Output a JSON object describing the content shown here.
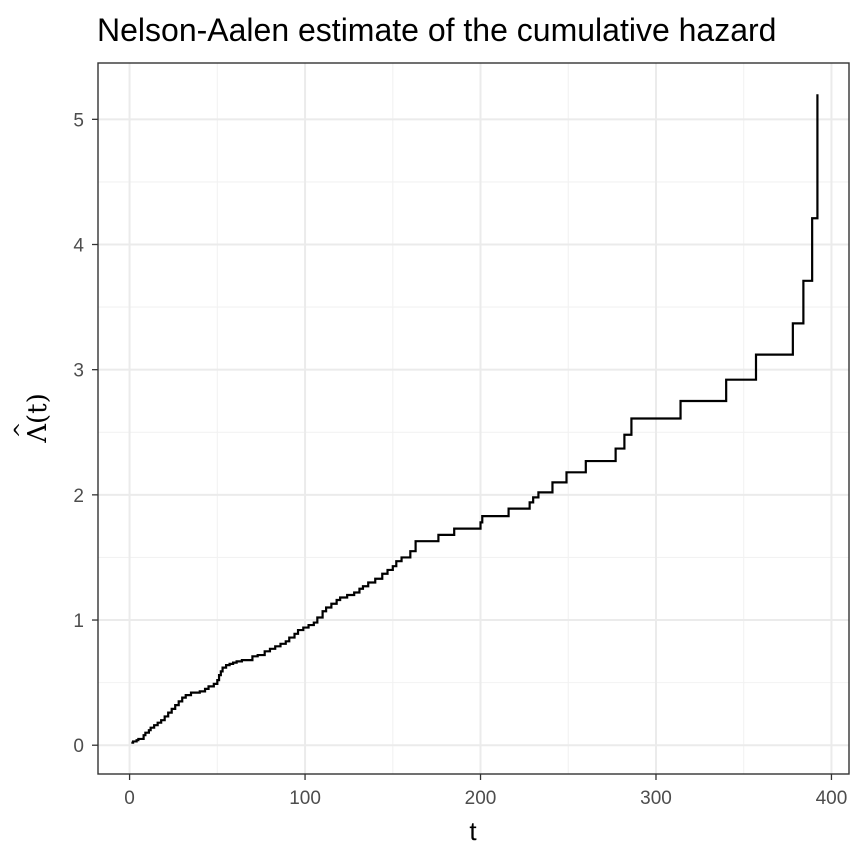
{
  "chart_data": {
    "type": "line",
    "title": "Nelson-Aalen estimate of the cumulative hazard",
    "xlabel": "t",
    "ylabel": "Λ(t)",
    "ylabel_accent": "^",
    "xlim": [
      -18,
      410
    ],
    "ylim": [
      -0.23,
      5.45
    ],
    "x_ticks": [
      0,
      100,
      200,
      300,
      400
    ],
    "y_ticks": [
      0,
      1,
      2,
      3,
      4,
      5
    ],
    "grid": true,
    "legend": "none",
    "line_color": "#000000",
    "series": [
      {
        "step": true,
        "x": [
          1,
          2,
          4,
          5,
          8,
          9,
          11,
          12,
          14,
          16,
          18,
          20,
          22,
          24,
          26,
          28,
          30,
          32,
          35,
          40,
          43,
          45,
          48,
          50,
          51,
          52,
          53,
          55,
          57,
          59,
          61,
          64,
          70,
          73,
          77,
          80,
          83,
          86,
          89,
          91,
          94,
          96,
          99,
          102,
          105,
          107,
          110,
          112,
          115,
          118,
          120,
          124,
          128,
          131,
          133,
          136,
          140,
          144,
          147,
          150,
          152,
          155,
          160,
          163,
          176,
          185,
          200,
          201,
          216,
          228,
          230,
          233,
          241,
          249,
          260,
          277,
          282,
          286,
          314,
          340,
          357,
          378,
          384,
          389,
          392,
          392
        ],
        "y": [
          0.02,
          0.03,
          0.04,
          0.05,
          0.08,
          0.1,
          0.12,
          0.14,
          0.16,
          0.18,
          0.2,
          0.23,
          0.26,
          0.29,
          0.32,
          0.35,
          0.38,
          0.4,
          0.42,
          0.43,
          0.45,
          0.47,
          0.49,
          0.52,
          0.56,
          0.59,
          0.62,
          0.64,
          0.65,
          0.66,
          0.67,
          0.68,
          0.71,
          0.72,
          0.75,
          0.77,
          0.79,
          0.81,
          0.83,
          0.86,
          0.89,
          0.92,
          0.94,
          0.96,
          0.98,
          1.02,
          1.07,
          1.1,
          1.13,
          1.16,
          1.18,
          1.2,
          1.22,
          1.25,
          1.27,
          1.3,
          1.33,
          1.37,
          1.4,
          1.43,
          1.47,
          1.5,
          1.55,
          1.63,
          1.68,
          1.73,
          1.78,
          1.83,
          1.89,
          1.94,
          1.98,
          2.02,
          2.1,
          2.18,
          2.27,
          2.37,
          2.48,
          2.61,
          2.75,
          2.92,
          3.12,
          3.37,
          3.71,
          4.21,
          4.5,
          5.2
        ]
      }
    ]
  }
}
